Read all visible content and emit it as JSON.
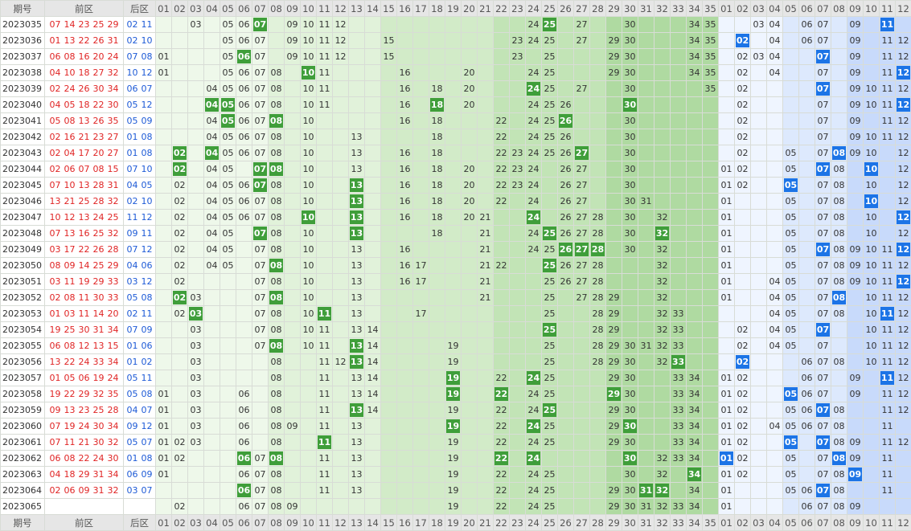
{
  "header": {
    "issue": "期号",
    "front": "前区",
    "back": "后区",
    "front_cols": [
      "01",
      "02",
      "03",
      "04",
      "05",
      "06",
      "07",
      "08",
      "09",
      "10",
      "11",
      "12",
      "13",
      "14",
      "15",
      "16",
      "17",
      "18",
      "19",
      "20",
      "21",
      "22",
      "23",
      "24",
      "25",
      "26",
      "27",
      "28",
      "29",
      "30",
      "31",
      "32",
      "33",
      "34",
      "35"
    ],
    "back_cols": [
      "01",
      "02",
      "03",
      "04",
      "05",
      "06",
      "07",
      "08",
      "09",
      "10",
      "11",
      "12"
    ]
  },
  "rows": [
    {
      "issue": "2023035",
      "front": [
        "07",
        "14",
        "23",
        "25",
        "29"
      ],
      "back": [
        "02",
        "11"
      ],
      "zone1": [
        "03",
        "05",
        "06",
        {
          "hit": "07"
        },
        "09",
        "10",
        "11",
        "12",
        "24",
        {
          "hit": "25"
        },
        "27",
        "30",
        "34",
        "35"
      ],
      "zone2": [
        "03",
        "04",
        "06",
        "07",
        "09",
        {
          "hit": "11"
        }
      ]
    },
    {
      "issue": "2023036",
      "front": [
        "01",
        "13",
        "22",
        "26",
        "31"
      ],
      "back": [
        "02",
        "10"
      ],
      "zone1": [
        "05",
        "06",
        "07",
        "09",
        "10",
        "11",
        "12",
        "15",
        "23",
        "24",
        "25",
        "27",
        "29",
        "30",
        "34",
        "35"
      ],
      "zone2": [
        {
          "hit": "02"
        },
        "04",
        "06",
        "07",
        "09",
        "11",
        "12"
      ]
    },
    {
      "issue": "2023037",
      "front": [
        "06",
        "08",
        "16",
        "20",
        "24"
      ],
      "back": [
        "07",
        "08"
      ],
      "zone1": [
        "01",
        "05",
        {
          "hit": "06"
        },
        "07",
        "09",
        "10",
        "11",
        "12",
        "15",
        "23",
        "25",
        "29",
        "30",
        "34",
        "35"
      ],
      "zone2": [
        "02",
        "03",
        "04",
        {
          "hit": "07"
        },
        "09",
        "11",
        "12"
      ]
    },
    {
      "issue": "2023038",
      "front": [
        "04",
        "10",
        "18",
        "27",
        "32"
      ],
      "back": [
        "10",
        "12"
      ],
      "zone1": [
        "01",
        "05",
        "06",
        "07",
        "08",
        {
          "hit": "10"
        },
        "11",
        "16",
        "20",
        "24",
        "25",
        "29",
        "30",
        "34",
        "35"
      ],
      "zone2": [
        "02",
        "04",
        "07",
        "09",
        "11",
        {
          "hit": "12"
        }
      ]
    },
    {
      "issue": "2023039",
      "front": [
        "02",
        "24",
        "26",
        "30",
        "34"
      ],
      "back": [
        "06",
        "07"
      ],
      "zone1": [
        "04",
        "05",
        "06",
        "07",
        "08",
        "10",
        "11",
        "16",
        "18",
        "20",
        {
          "hit": "24"
        },
        "25",
        "27",
        "30",
        "35"
      ],
      "zone2": [
        "02",
        {
          "hit": "07"
        },
        "09",
        "10",
        "11",
        "12"
      ]
    },
    {
      "issue": "2023040",
      "front": [
        "04",
        "05",
        "18",
        "22",
        "30"
      ],
      "back": [
        "05",
        "12"
      ],
      "zone1": [
        {
          "hit": "04"
        },
        {
          "hit": "05"
        },
        "06",
        "07",
        "08",
        "10",
        "11",
        "16",
        {
          "hit": "18"
        },
        "20",
        "24",
        "25",
        "26",
        {
          "hit": "30"
        }
      ],
      "zone2": [
        "02",
        "07",
        "09",
        "10",
        "11",
        {
          "hit": "12"
        }
      ]
    },
    {
      "issue": "2023041",
      "front": [
        "05",
        "08",
        "13",
        "26",
        "35"
      ],
      "back": [
        "05",
        "09"
      ],
      "zone1": [
        "04",
        {
          "hit": "05"
        },
        "06",
        "07",
        {
          "hit": "08"
        },
        "10",
        "16",
        "18",
        "22",
        "24",
        "25",
        {
          "hit": "26"
        },
        "30"
      ],
      "zone2": [
        "02",
        "07",
        "09",
        "11",
        "12"
      ]
    },
    {
      "issue": "2023042",
      "front": [
        "02",
        "16",
        "21",
        "23",
        "27"
      ],
      "back": [
        "01",
        "08"
      ],
      "zone1": [
        "04",
        "05",
        "06",
        "07",
        "08",
        "10",
        "13",
        "18",
        "22",
        "24",
        "25",
        "26",
        "30"
      ],
      "zone2": [
        "02",
        "07",
        "09",
        "10",
        "11",
        "12"
      ]
    },
    {
      "issue": "2023043",
      "front": [
        "02",
        "04",
        "17",
        "20",
        "27"
      ],
      "back": [
        "01",
        "08"
      ],
      "zone1": [
        {
          "hit": "02"
        },
        {
          "hit": "04"
        },
        "05",
        "06",
        "07",
        "08",
        "10",
        "13",
        "16",
        "18",
        "22",
        "23",
        "24",
        "25",
        "26",
        {
          "hit": "27"
        },
        "30"
      ],
      "zone2": [
        "02",
        "05",
        "07",
        {
          "hit": "08"
        },
        "09",
        "10",
        "12"
      ]
    },
    {
      "issue": "2023044",
      "front": [
        "02",
        "06",
        "07",
        "08",
        "15"
      ],
      "back": [
        "07",
        "10"
      ],
      "zone1": [
        {
          "hit": "02"
        },
        "04",
        "05",
        {
          "hit": "07"
        },
        {
          "hit": "08"
        },
        "10",
        "13",
        "16",
        "18",
        "20",
        "22",
        "23",
        "24",
        "26",
        "27",
        "30"
      ],
      "zone2": [
        "01",
        "02",
        "05",
        {
          "hit": "07"
        },
        "08",
        {
          "hit": "10"
        },
        "12"
      ]
    },
    {
      "issue": "2023045",
      "front": [
        "07",
        "10",
        "13",
        "28",
        "31"
      ],
      "back": [
        "04",
        "05"
      ],
      "zone1": [
        "02",
        "04",
        "05",
        "06",
        {
          "hit": "07"
        },
        "08",
        "10",
        {
          "hit": "13"
        },
        "16",
        "18",
        "20",
        "22",
        "23",
        "24",
        "26",
        "27",
        "30"
      ],
      "zone2": [
        "01",
        "02",
        {
          "hit": "05"
        },
        "07",
        "08",
        "10",
        "12"
      ]
    },
    {
      "issue": "2023046",
      "front": [
        "13",
        "21",
        "25",
        "28",
        "32"
      ],
      "back": [
        "02",
        "10"
      ],
      "zone1": [
        "02",
        "04",
        "05",
        "06",
        "07",
        "08",
        "10",
        {
          "hit": "13"
        },
        "16",
        "18",
        "20",
        "22",
        "24",
        "26",
        "27",
        "30",
        "31"
      ],
      "zone2": [
        "01",
        "05",
        "07",
        "08",
        {
          "hit": "10"
        },
        "12"
      ]
    },
    {
      "issue": "2023047",
      "front": [
        "10",
        "12",
        "13",
        "24",
        "25"
      ],
      "back": [
        "11",
        "12"
      ],
      "zone1": [
        "02",
        "04",
        "05",
        "06",
        "07",
        "08",
        {
          "hit": "10"
        },
        {
          "hit": "13"
        },
        "16",
        "18",
        "20",
        "21",
        {
          "hit": "24"
        },
        "26",
        "27",
        "28",
        "30",
        "32"
      ],
      "zone2": [
        "01",
        "05",
        "07",
        "08",
        "10",
        {
          "hit": "12"
        }
      ]
    },
    {
      "issue": "2023048",
      "front": [
        "07",
        "13",
        "16",
        "25",
        "32"
      ],
      "back": [
        "09",
        "11"
      ],
      "zone1": [
        "02",
        "04",
        "05",
        {
          "hit": "07"
        },
        "08",
        "10",
        {
          "hit": "13"
        },
        "18",
        "21",
        "24",
        {
          "hit": "25"
        },
        "26",
        "27",
        "28",
        "30",
        {
          "hit": "32"
        }
      ],
      "zone2": [
        "01",
        "05",
        "07",
        "08",
        "10",
        "12"
      ]
    },
    {
      "issue": "2023049",
      "front": [
        "03",
        "17",
        "22",
        "26",
        "28"
      ],
      "back": [
        "07",
        "12"
      ],
      "zone1": [
        "02",
        "04",
        "05",
        "07",
        "08",
        "10",
        "13",
        "16",
        "21",
        "24",
        "25",
        {
          "hit": "26"
        },
        {
          "hit": "27"
        },
        {
          "hit": "28"
        },
        "30",
        "32"
      ],
      "zone2": [
        "01",
        "05",
        {
          "hit": "07"
        },
        "08",
        "09",
        "10",
        "11",
        {
          "hit": "12"
        }
      ]
    },
    {
      "issue": "2023050",
      "front": [
        "08",
        "09",
        "14",
        "25",
        "29"
      ],
      "back": [
        "04",
        "06"
      ],
      "zone1": [
        "02",
        "04",
        "05",
        "07",
        {
          "hit": "08"
        },
        "10",
        "13",
        "16",
        "17",
        "21",
        "22",
        {
          "hit": "25"
        },
        "26",
        "27",
        "28",
        "32"
      ],
      "zone2": [
        "01",
        "05",
        "07",
        "08",
        "09",
        "10",
        "11",
        "12"
      ]
    },
    {
      "issue": "2023051",
      "front": [
        "03",
        "11",
        "19",
        "29",
        "33"
      ],
      "back": [
        "03",
        "12"
      ],
      "zone1": [
        "02",
        "07",
        "08",
        "10",
        "13",
        "16",
        "17",
        "21",
        "25",
        "26",
        "27",
        "28",
        "32"
      ],
      "zone2": [
        "01",
        "04",
        "05",
        "07",
        "08",
        "09",
        "10",
        "11",
        {
          "hit": "12"
        }
      ]
    },
    {
      "issue": "2023052",
      "front": [
        "02",
        "08",
        "11",
        "30",
        "33"
      ],
      "back": [
        "05",
        "08"
      ],
      "zone1": [
        {
          "hit": "02"
        },
        "03",
        "07",
        {
          "hit": "08"
        },
        "10",
        "13",
        "21",
        "25",
        "27",
        "28",
        "29",
        "32"
      ],
      "zone2": [
        "01",
        "04",
        "05",
        "07",
        {
          "hit": "08"
        },
        "10",
        "11",
        "12"
      ]
    },
    {
      "issue": "2023053",
      "front": [
        "01",
        "03",
        "11",
        "14",
        "20"
      ],
      "back": [
        "02",
        "11"
      ],
      "zone1": [
        "02",
        {
          "hit": "03"
        },
        "07",
        "08",
        "10",
        {
          "hit": "11"
        },
        "13",
        "17",
        "25",
        "28",
        "29",
        "32",
        "33"
      ],
      "zone2": [
        "04",
        "05",
        "07",
        "08",
        "10",
        {
          "hit": "11"
        },
        "12"
      ]
    },
    {
      "issue": "2023054",
      "front": [
        "19",
        "25",
        "30",
        "31",
        "34"
      ],
      "back": [
        "07",
        "09"
      ],
      "zone1": [
        "03",
        "07",
        "08",
        "10",
        "11",
        "13",
        "14",
        {
          "hit": "25"
        },
        "28",
        "29",
        "32",
        "33"
      ],
      "zone2": [
        "02",
        "04",
        "05",
        {
          "hit": "07"
        },
        "10",
        "11",
        "12"
      ]
    },
    {
      "issue": "2023055",
      "front": [
        "06",
        "08",
        "12",
        "13",
        "15"
      ],
      "back": [
        "01",
        "06"
      ],
      "zone1": [
        "03",
        "07",
        {
          "hit": "08"
        },
        "10",
        "11",
        {
          "hit": "13"
        },
        "14",
        "19",
        "25",
        "28",
        "29",
        "30",
        "31",
        "32",
        "33"
      ],
      "zone2": [
        "02",
        "04",
        "05",
        "07",
        "10",
        "11",
        "12"
      ]
    },
    {
      "issue": "2023056",
      "front": [
        "13",
        "22",
        "24",
        "33",
        "34"
      ],
      "back": [
        "01",
        "02"
      ],
      "zone1": [
        "03",
        "08",
        "11",
        "12",
        {
          "hit": "13"
        },
        "14",
        "19",
        "25",
        "28",
        "29",
        "30",
        "32",
        {
          "hit": "33"
        }
      ],
      "zone2": [
        {
          "hit": "02"
        },
        "06",
        "07",
        "08",
        "10",
        "11",
        "12"
      ]
    },
    {
      "issue": "2023057",
      "front": [
        "01",
        "05",
        "06",
        "19",
        "24"
      ],
      "back": [
        "05",
        "11"
      ],
      "zone1": [
        "03",
        "08",
        "11",
        "13",
        "14",
        {
          "hit": "19"
        },
        "22",
        {
          "hit": "24"
        },
        "25",
        "29",
        "30",
        "33",
        "34"
      ],
      "zone2": [
        "01",
        "02",
        "06",
        "07",
        "09",
        {
          "hit": "11"
        },
        "12"
      ]
    },
    {
      "issue": "2023058",
      "front": [
        "19",
        "22",
        "29",
        "32",
        "35"
      ],
      "back": [
        "05",
        "08"
      ],
      "zone1": [
        "01",
        "03",
        "06",
        "08",
        "11",
        "13",
        "14",
        {
          "hit": "19"
        },
        {
          "hit": "22"
        },
        "24",
        "25",
        {
          "hit": "29"
        },
        "30",
        "33",
        "34"
      ],
      "zone2": [
        "01",
        "02",
        {
          "hit": "05"
        },
        "06",
        "07",
        "09",
        "11",
        "12"
      ]
    },
    {
      "issue": "2023059",
      "front": [
        "09",
        "13",
        "23",
        "25",
        "28"
      ],
      "back": [
        "04",
        "07"
      ],
      "zone1": [
        "01",
        "03",
        "06",
        "08",
        "11",
        {
          "hit": "13"
        },
        "14",
        "19",
        "22",
        "24",
        {
          "hit": "25"
        },
        "29",
        "30",
        "33",
        "34"
      ],
      "zone2": [
        "01",
        "02",
        "05",
        "06",
        {
          "hit": "07"
        },
        "08",
        "11",
        "12"
      ]
    },
    {
      "issue": "2023060",
      "front": [
        "07",
        "19",
        "24",
        "30",
        "34"
      ],
      "back": [
        "09",
        "12"
      ],
      "zone1": [
        "01",
        "03",
        "06",
        "08",
        "09",
        "11",
        "13",
        {
          "hit": "19"
        },
        "22",
        {
          "hit": "24"
        },
        "25",
        "29",
        {
          "hit": "30"
        },
        "33",
        "34"
      ],
      "zone2": [
        "01",
        "02",
        "04",
        "05",
        "06",
        "07",
        "08",
        "11"
      ]
    },
    {
      "issue": "2023061",
      "front": [
        "07",
        "11",
        "21",
        "30",
        "32"
      ],
      "back": [
        "05",
        "07"
      ],
      "zone1": [
        "01",
        "02",
        "03",
        "06",
        "08",
        {
          "hit": "11"
        },
        "13",
        "19",
        "22",
        "24",
        "25",
        "29",
        "30",
        "33",
        "34"
      ],
      "zone2": [
        "01",
        "02",
        {
          "hit": "05"
        },
        {
          "hit": "07"
        },
        "08",
        "09",
        "11",
        "12"
      ]
    },
    {
      "issue": "2023062",
      "front": [
        "06",
        "08",
        "22",
        "24",
        "30"
      ],
      "back": [
        "01",
        "08"
      ],
      "zone1": [
        "01",
        "02",
        {
          "hit": "06"
        },
        "07",
        {
          "hit": "08"
        },
        "11",
        "13",
        "19",
        {
          "hit": "22"
        },
        {
          "hit": "24"
        },
        {
          "hit": "30"
        },
        "32",
        "33",
        "34"
      ],
      "zone2": [
        {
          "hit": "01"
        },
        "02",
        "05",
        "07",
        {
          "hit": "08"
        },
        "09",
        "11"
      ]
    },
    {
      "issue": "2023063",
      "front": [
        "04",
        "18",
        "29",
        "31",
        "34"
      ],
      "back": [
        "06",
        "09"
      ],
      "zone1": [
        "01",
        "06",
        "07",
        "08",
        "11",
        "13",
        "19",
        "22",
        "24",
        "25",
        "30",
        "32",
        {
          "hit": "34"
        }
      ],
      "zone2": [
        "01",
        "02",
        "05",
        "07",
        "08",
        {
          "hit": "09"
        },
        "11"
      ]
    },
    {
      "issue": "2023064",
      "front": [
        "02",
        "06",
        "09",
        "31",
        "32"
      ],
      "back": [
        "03",
        "07"
      ],
      "zone1": [
        {
          "hit": "06"
        },
        "07",
        "08",
        "11",
        "13",
        "19",
        "22",
        "24",
        "25",
        "29",
        "30",
        {
          "hit": "31"
        },
        {
          "hit": "32"
        },
        "34"
      ],
      "zone2": [
        "01",
        "05",
        "06",
        {
          "hit": "07"
        },
        "08",
        "11"
      ]
    },
    {
      "issue": "2023065",
      "front": [],
      "back": [],
      "zone1": [
        "02",
        "06",
        "07",
        "08",
        "09",
        "19",
        "22",
        "24",
        "25",
        "29",
        "30",
        "31",
        "32",
        "33",
        "34"
      ],
      "zone2": [
        "01",
        "06",
        "07",
        "08",
        "09"
      ]
    }
  ]
}
